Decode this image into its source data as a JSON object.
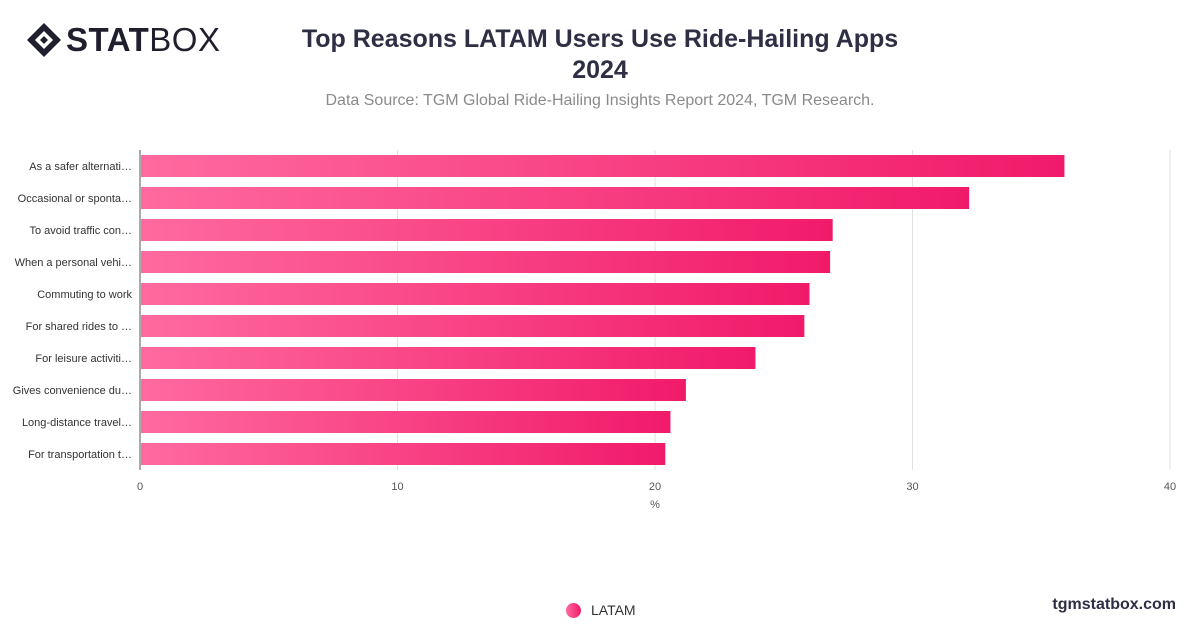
{
  "logo": {
    "word_bold": "STAT",
    "word_light": "BOX"
  },
  "header": {
    "title_line1": "Top Reasons LATAM Users Use Ride-Hailing Apps",
    "title_line2": "2024",
    "subtitle": "Data Source: TGM Global Ride-Hailing Insights Report 2024, TGM Research."
  },
  "chart_data": {
    "type": "bar",
    "orientation": "horizontal",
    "categories": [
      "As a safer alternati…",
      "Occasional or sponta…",
      "To avoid traffic con…",
      "When a personal vehi…",
      "Commuting to work",
      "For shared rides to …",
      "For leisure activiti…",
      "Gives convenience du…",
      "Long-distance travel…",
      "For transportation t…"
    ],
    "series": [
      {
        "name": "LATAM",
        "values": [
          35.9,
          32.2,
          26.9,
          26.8,
          26.0,
          25.8,
          23.9,
          21.2,
          20.6,
          20.4
        ]
      }
    ],
    "xlabel": "%",
    "xlim": [
      0,
      40
    ],
    "xticks": [
      "0",
      "10",
      "20",
      "30",
      "40"
    ],
    "grid": true,
    "legend_position": "bottom-center",
    "colors": {
      "bar_start": "#ff6a9f",
      "bar_end": "#f11a6a"
    }
  },
  "footer": {
    "url": "tgmstatbox.com"
  }
}
